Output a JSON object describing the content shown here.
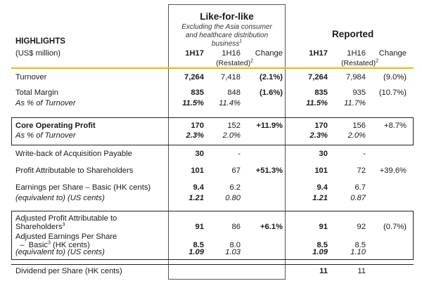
{
  "header": {
    "title": "HIGHLIGHTS",
    "unit": "(US$ million)",
    "lfl_title": "Like-for-like",
    "lfl_sub1": "Excluding the Asia consumer",
    "lfl_sub2": "and healthcare distribution",
    "lfl_sub3": "business",
    "lfl_sup": "1",
    "reported_title": "Reported",
    "col_1h17": "1H17",
    "col_1h16": "1H16",
    "col_change": "Change",
    "restated": "(Restated)",
    "restated_sup": "2"
  },
  "colors": {
    "accent": "#F5B400",
    "border": "#222222"
  },
  "rows": [
    {
      "label": "Turnover",
      "v1": "7,264",
      "v2": "7,418",
      "ch": "(2.1%)",
      "r1": "7,264",
      "r2": "7,984",
      "rch": "(9.0%)"
    },
    {
      "label": "Total Margin",
      "v1": "835",
      "v2": "848",
      "ch": "(1.6%)",
      "r1": "835",
      "r2": "935",
      "rch": "(10.7%)"
    },
    {
      "label": "As % of Turnover",
      "v1": "11.5%",
      "v2": "11.4%",
      "ch": "",
      "r1": "11.5%",
      "r2": "11.7%",
      "rch": ""
    },
    {
      "label": "Core Operating Profit",
      "v1": "170",
      "v2": "152",
      "ch": "+11.9%",
      "r1": "170",
      "r2": "156",
      "rch": "+8.7%"
    },
    {
      "label": "As % of Turnover",
      "v1": "2.3%",
      "v2": "2.0%",
      "ch": "",
      "r1": "2.3%",
      "r2": "2.0%",
      "rch": ""
    },
    {
      "label": "Write-back of Acquisition Payable",
      "v1": "30",
      "v2": "-",
      "ch": "",
      "r1": "30",
      "r2": "-",
      "rch": ""
    },
    {
      "label": "Profit Attributable to Shareholders",
      "v1": "101",
      "v2": "67",
      "ch": "+51.3%",
      "r1": "101",
      "r2": "72",
      "rch": "+39.6%"
    },
    {
      "label": "Earnings per Share – Basic (HK cents)",
      "v1": "9.4",
      "v2": "6.2",
      "ch": "",
      "r1": "9.4",
      "r2": "6.7",
      "rch": ""
    },
    {
      "label": "(equivalent to) (US cents)",
      "v1": "1.21",
      "v2": "0.80",
      "ch": "",
      "r1": "1.21",
      "r2": "0.87",
      "rch": ""
    },
    {
      "label": "Adjusted Profit Attributable to",
      "label2": "Shareholders",
      "sup": "3",
      "v1": "91",
      "v2": "86",
      "ch": "+6.1%",
      "r1": "91",
      "r2": "92",
      "rch": "(0.7%)"
    },
    {
      "label": "Adjusted Earnings Per Share",
      "label2": "  –  Basic",
      "sup": "3",
      "label2b": " (HK cents)",
      "v1": "8.5",
      "v2": "8.0",
      "ch": "",
      "r1": "8.5",
      "r2": "8.5",
      "rch": ""
    },
    {
      "label": "(equivalent to) (US cents)",
      "v1": "1.09",
      "v2": "1.03",
      "ch": "",
      "r1": "1.09",
      "r2": "1.10",
      "rch": ""
    },
    {
      "label": "Dividend per Share (HK cents)",
      "v1": "",
      "v2": "",
      "ch": "",
      "r1": "11",
      "r2": "11",
      "rch": ""
    }
  ]
}
